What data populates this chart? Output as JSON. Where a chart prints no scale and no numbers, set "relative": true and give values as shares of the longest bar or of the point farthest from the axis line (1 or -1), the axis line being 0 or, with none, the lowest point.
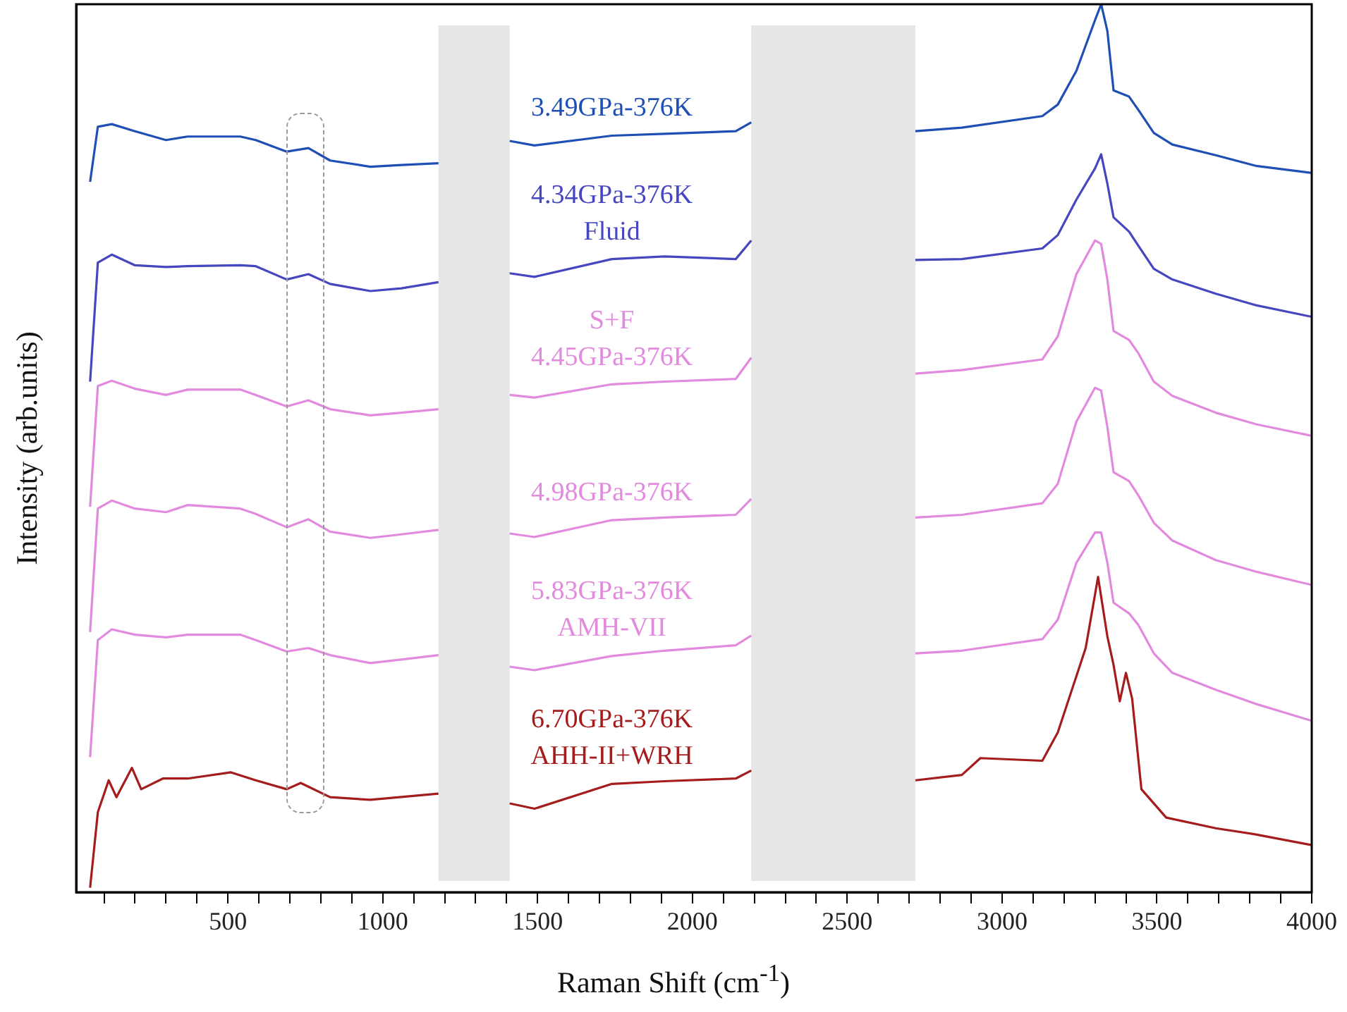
{
  "chart_data": {
    "type": "line",
    "relative": true,
    "xlabel": "Raman Shift (cm$^{-1}$)",
    "ylabel": "Intensity (arb.units)",
    "xlim": [
      10,
      4000
    ],
    "xticks": [
      {
        "value": 100,
        "label": null
      },
      {
        "value": 200,
        "label": null
      },
      {
        "value": 300,
        "label": null
      },
      {
        "value": 400,
        "label": null
      },
      500,
      {
        "value": 600,
        "label": null
      },
      {
        "value": 700,
        "label": null
      },
      {
        "value": 800,
        "label": null
      },
      {
        "value": 900,
        "label": null
      },
      1000,
      {
        "value": 1100,
        "label": null
      },
      {
        "value": 1200,
        "label": null
      },
      {
        "value": 1300,
        "label": null
      },
      {
        "value": 1400,
        "label": null
      },
      1500,
      {
        "value": 1600,
        "label": null
      },
      {
        "value": 1700,
        "label": null
      },
      {
        "value": 1800,
        "label": null
      },
      {
        "value": 1900,
        "label": null
      },
      2000,
      {
        "value": 2100,
        "label": null
      },
      {
        "value": 2200,
        "label": null
      },
      {
        "value": 2300,
        "label": null
      },
      {
        "value": 2400,
        "label": null
      },
      2500,
      {
        "value": 2600,
        "label": null
      },
      {
        "value": 2700,
        "label": null
      },
      {
        "value": 2800,
        "label": null
      },
      {
        "value": 2900,
        "label": null
      },
      3000,
      {
        "value": 3100,
        "label": null
      },
      {
        "value": 3200,
        "label": null
      },
      {
        "value": 3300,
        "label": null
      },
      {
        "value": 3400,
        "label": null
      },
      3500,
      {
        "value": 3600,
        "label": null
      },
      {
        "value": 3700,
        "label": null
      },
      {
        "value": 3800,
        "label": null
      },
      {
        "value": 3900,
        "label": null
      },
      4000
    ],
    "grid": false,
    "legend": false,
    "marker": "none",
    "line_style": "solid",
    "bands": [
      {
        "axis": "x",
        "from": 1180,
        "to": 1410,
        "color": "#e6e6e6"
      },
      {
        "axis": "x",
        "from": 2190,
        "to": 2720,
        "color": "#e6e6e6"
      }
    ],
    "series": [
      {
        "name": "3.49GPa-376K",
        "color": "#1f4fb4",
        "x": [
          55,
          80,
          125,
          200,
          300,
          370,
          540,
          590,
          690,
          760,
          830,
          960,
          1060,
          1180,
          1300,
          1410,
          1490,
          1740,
          1910,
          2140,
          2190,
          2450,
          2720,
          2870,
          3130,
          3180,
          3240,
          3300,
          3320,
          3340,
          3360,
          3410,
          3440,
          3490,
          3550,
          3690,
          3820,
          4000
        ],
        "values": [
          0.8,
          0.862,
          0.865,
          0.857,
          0.847,
          0.851,
          0.851,
          0.847,
          0.834,
          0.838,
          0.824,
          0.817,
          0.819,
          0.821,
          null,
          0.846,
          0.841,
          0.852,
          0.854,
          0.857,
          0.867,
          null,
          0.857,
          0.861,
          0.874,
          0.887,
          0.925,
          0.982,
          1,
          0.97,
          0.903,
          0.896,
          0.881,
          0.855,
          0.842,
          0.83,
          0.818,
          0.81
        ]
      },
      {
        "name": "4.34GPa-376K\nFluid",
        "color": "#4646c0",
        "x": [
          55,
          80,
          125,
          200,
          300,
          370,
          540,
          590,
          690,
          760,
          830,
          960,
          1060,
          1180,
          1300,
          1410,
          1490,
          1740,
          1910,
          2140,
          2190,
          2450,
          2720,
          2870,
          3130,
          3180,
          3240,
          3300,
          3320,
          3340,
          3360,
          3410,
          3440,
          3490,
          3550,
          3690,
          3820,
          4000
        ],
        "values": [
          0.575,
          0.709,
          0.718,
          0.706,
          0.704,
          0.705,
          0.706,
          0.705,
          0.69,
          0.696,
          0.685,
          0.677,
          0.68,
          0.687,
          null,
          0.697,
          0.693,
          0.713,
          0.716,
          0.713,
          0.734,
          null,
          0.712,
          0.713,
          0.725,
          0.74,
          0.78,
          0.815,
          0.831,
          0.798,
          0.76,
          0.744,
          0.728,
          0.702,
          0.69,
          0.674,
          0.661,
          0.648
        ]
      },
      {
        "name": "S+F\n4.45GPa-376K",
        "color": "#e28ade",
        "x": [
          55,
          80,
          125,
          200,
          300,
          370,
          540,
          590,
          690,
          760,
          830,
          960,
          1060,
          1180,
          1300,
          1410,
          1490,
          1740,
          1910,
          2140,
          2190,
          2450,
          2720,
          2870,
          3130,
          3180,
          3240,
          3300,
          3320,
          3340,
          3360,
          3410,
          3440,
          3490,
          3550,
          3690,
          3820,
          4000
        ],
        "values": [
          0.434,
          0.57,
          0.576,
          0.567,
          0.56,
          0.566,
          0.566,
          0.56,
          0.547,
          0.554,
          0.544,
          0.537,
          0.54,
          0.544,
          null,
          0.56,
          0.557,
          0.572,
          0.575,
          0.578,
          0.602,
          null,
          0.584,
          0.588,
          0.6,
          0.626,
          0.696,
          0.734,
          0.73,
          0.69,
          0.632,
          0.622,
          0.607,
          0.575,
          0.559,
          0.54,
          0.527,
          0.514
        ]
      },
      {
        "name": "4.98GPa-376K",
        "color": "#e28ade",
        "x": [
          55,
          80,
          125,
          200,
          300,
          370,
          540,
          590,
          690,
          760,
          830,
          960,
          1060,
          1180,
          1300,
          1410,
          1490,
          1740,
          1910,
          2140,
          2190,
          2450,
          2720,
          2870,
          3130,
          3180,
          3240,
          3300,
          3320,
          3340,
          3360,
          3410,
          3440,
          3490,
          3550,
          3690,
          3820,
          4000
        ],
        "values": [
          0.293,
          0.432,
          0.441,
          0.432,
          0.428,
          0.436,
          0.432,
          0.426,
          0.411,
          0.42,
          0.406,
          0.399,
          0.403,
          0.408,
          null,
          0.404,
          0.4,
          0.419,
          0.422,
          0.425,
          0.443,
          null,
          0.422,
          0.425,
          0.438,
          0.46,
          0.53,
          0.568,
          0.565,
          0.524,
          0.473,
          0.463,
          0.447,
          0.416,
          0.396,
          0.374,
          0.361,
          0.346
        ]
      },
      {
        "name": "5.83GPa-376K\nAMH-VII",
        "color": "#e28ade",
        "x": [
          55,
          80,
          125,
          200,
          300,
          370,
          540,
          590,
          690,
          760,
          830,
          960,
          1060,
          1180,
          1300,
          1410,
          1490,
          1740,
          1910,
          2140,
          2190,
          2450,
          2720,
          2870,
          3130,
          3180,
          3240,
          3300,
          3320,
          3340,
          3360,
          3410,
          3440,
          3490,
          3550,
          3690,
          3820,
          4000
        ],
        "values": [
          0.152,
          0.284,
          0.296,
          0.29,
          0.287,
          0.29,
          0.29,
          0.284,
          0.271,
          0.275,
          0.267,
          0.258,
          0.262,
          0.267,
          null,
          0.254,
          0.25,
          0.266,
          0.272,
          0.278,
          0.289,
          null,
          0.269,
          0.272,
          0.285,
          0.307,
          0.371,
          0.405,
          0.405,
          0.371,
          0.326,
          0.314,
          0.301,
          0.269,
          0.247,
          0.228,
          0.212,
          0.193
        ]
      },
      {
        "name": "6.70GPa-376K\nAHH-II+WRH",
        "color": "#a51c1c",
        "x": [
          55,
          80,
          115,
          140,
          190,
          220,
          290,
          370,
          510,
          590,
          690,
          735,
          830,
          960,
          1180,
          1300,
          1410,
          1490,
          1740,
          1910,
          2140,
          2190,
          2450,
          2720,
          2870,
          2930,
          3130,
          3180,
          3270,
          3310,
          3340,
          3360,
          3380,
          3400,
          3420,
          3450,
          3530,
          3690,
          3820,
          4000
        ],
        "values": [
          0.005,
          0.09,
          0.126,
          0.107,
          0.14,
          0.116,
          0.128,
          0.128,
          0.135,
          0.126,
          0.116,
          0.123,
          0.107,
          0.104,
          0.111,
          null,
          0.1,
          0.094,
          0.122,
          0.125,
          0.128,
          0.137,
          null,
          0.126,
          0.132,
          0.151,
          0.148,
          0.18,
          0.275,
          0.355,
          0.288,
          0.256,
          0.215,
          0.247,
          0.218,
          0.116,
          0.084,
          0.072,
          0.065,
          0.053
        ]
      }
    ]
  }
}
